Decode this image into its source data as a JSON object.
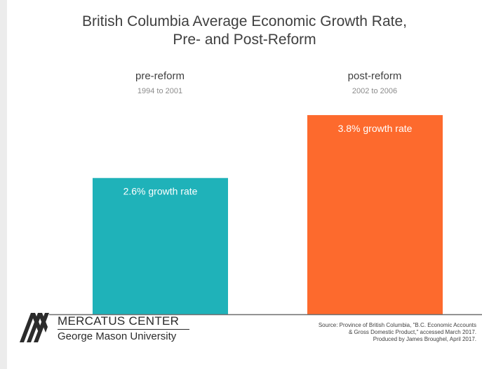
{
  "chart_data": {
    "type": "bar",
    "title": "British Columbia Average Economic Growth Rate, Pre- and Post-Reform",
    "title_lines": [
      "British Columbia Average Economic Growth Rate,",
      "Pre- and Post-Reform"
    ],
    "categories": [
      "pre-reform",
      "post-reform"
    ],
    "category_subtitles": [
      "1994 to 2001",
      "2002 to 2006"
    ],
    "values": [
      2.6,
      3.8
    ],
    "unit": "%",
    "data_labels": [
      "2.6% growth rate",
      "3.8% growth rate"
    ],
    "colors": [
      "#1fb2b9",
      "#fd6a2d"
    ],
    "ylim": [
      0,
      5.3
    ],
    "grid": false,
    "xlabel": "",
    "ylabel": ""
  },
  "branding": {
    "org_name": "MERCATUS CENTER",
    "org_sub": "George Mason University"
  },
  "source_lines": [
    "Source: Province of British Columbia, \"B.C. Economic Accounts",
    "& Gross Domestic Product,\" accessed March 2017.",
    "Produced by James Broughel, April 2017."
  ]
}
